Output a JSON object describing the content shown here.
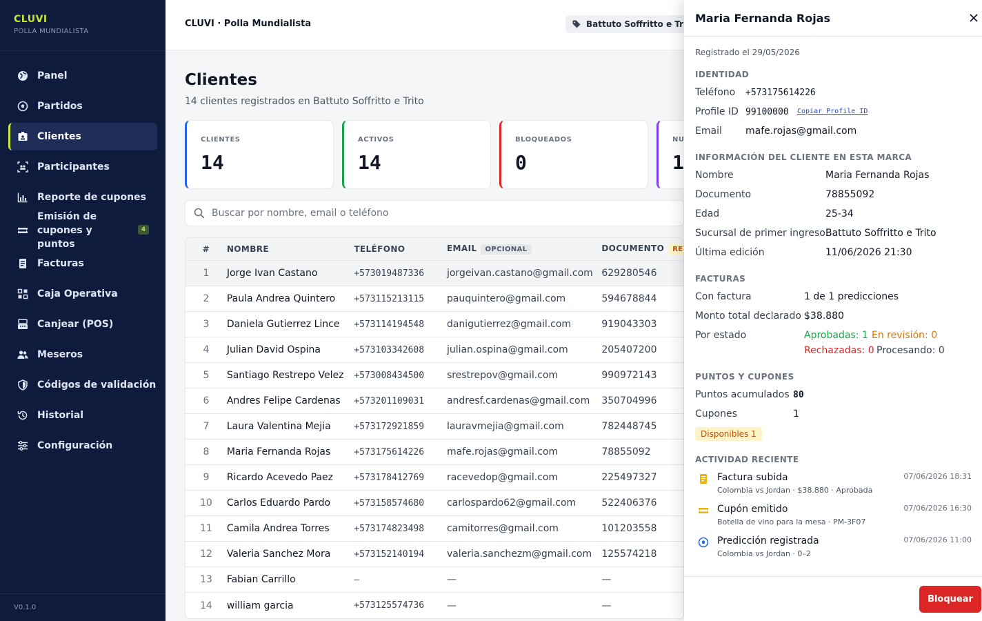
{
  "sidebar": {
    "brand": "CLUVI",
    "subtitle": "POLLA MUNDIALISTA",
    "items": [
      {
        "label": "Panel",
        "icon": "globe-icon"
      },
      {
        "label": "Partidos",
        "icon": "soccer-ball-icon"
      },
      {
        "label": "Clientes",
        "icon": "id-card-icon",
        "active": true
      },
      {
        "label": "Participantes",
        "icon": "users-scan-icon"
      },
      {
        "label": "Reporte de cupones",
        "icon": "bar-chart-icon"
      },
      {
        "label": "Emisión de cupones y puntos",
        "icon": "ticket-icon",
        "badge": "4"
      },
      {
        "label": "Facturas",
        "icon": "receipt-icon"
      },
      {
        "label": "Caja Operativa",
        "icon": "grid-icon"
      },
      {
        "label": "Canjear (POS)",
        "icon": "pos-icon"
      },
      {
        "label": "Meseros",
        "icon": "people-icon"
      },
      {
        "label": "Códigos de validación",
        "icon": "shield-icon"
      },
      {
        "label": "Historial",
        "icon": "history-icon"
      },
      {
        "label": "Configuración",
        "icon": "sliders-icon"
      }
    ],
    "version": "V0.1.0"
  },
  "header": {
    "title": "CLUVI · Polla Mundialista",
    "brand_chip": "Battuto Soffritto e Trito"
  },
  "main": {
    "title": "Clientes",
    "subtitle": "14 clientes registrados en Battuto Soffritto e Trito",
    "stats": [
      {
        "label": "CLIENTES",
        "value": "14",
        "color": "#2563eb"
      },
      {
        "label": "ACTIVOS",
        "value": "14",
        "color": "#16a34a"
      },
      {
        "label": "BLOQUEADOS",
        "value": "0",
        "color": "#dc2626"
      },
      {
        "label": "NU",
        "value": "1",
        "color": "#7c3aed"
      }
    ],
    "search_placeholder": "Buscar por nombre, email o teléfono",
    "table": {
      "headers": {
        "n": "#",
        "name": "NOMBRE",
        "tel": "TELÉFONO",
        "email": "EMAIL",
        "email_tag": "OPCIONAL",
        "doc": "DOCUMENTO",
        "doc_tag": "REQ"
      },
      "rows": [
        {
          "n": "1",
          "name": "Jorge Ivan Castano",
          "tel": "+573019487336",
          "email": "jorgeivan.castano@gmail.com",
          "doc": "629280546"
        },
        {
          "n": "2",
          "name": "Paula Andrea Quintero",
          "tel": "+573115213115",
          "email": "pauquintero@gmail.com",
          "doc": "594678844"
        },
        {
          "n": "3",
          "name": "Daniela Gutierrez Lince",
          "tel": "+573114194548",
          "email": "danigutierrez@gmail.com",
          "doc": "919043303"
        },
        {
          "n": "4",
          "name": "Julian David Ospina",
          "tel": "+573103342608",
          "email": "julian.ospina@gmail.com",
          "doc": "205407200"
        },
        {
          "n": "5",
          "name": "Santiago Restrepo Velez",
          "tel": "+573008434500",
          "email": "srestrepov@gmail.com",
          "doc": "990972143"
        },
        {
          "n": "6",
          "name": "Andres Felipe Cardenas",
          "tel": "+573201109031",
          "email": "andresf.cardenas@gmail.com",
          "doc": "350704996"
        },
        {
          "n": "7",
          "name": "Laura Valentina Mejia",
          "tel": "+573172921859",
          "email": "lauravmejia@gmail.com",
          "doc": "782448745"
        },
        {
          "n": "8",
          "name": "Maria Fernanda Rojas",
          "tel": "+573175614226",
          "email": "mafe.rojas@gmail.com",
          "doc": "78855092"
        },
        {
          "n": "9",
          "name": "Ricardo Acevedo Paez",
          "tel": "+573178412769",
          "email": "racevedop@gmail.com",
          "doc": "225497327"
        },
        {
          "n": "10",
          "name": "Carlos Eduardo Pardo",
          "tel": "+573158574680",
          "email": "carlospardo62@gmail.com",
          "doc": "522406376"
        },
        {
          "n": "11",
          "name": "Camila Andrea Torres",
          "tel": "+573174823498",
          "email": "camitorres@gmail.com",
          "doc": "101203558"
        },
        {
          "n": "12",
          "name": "Valeria Sanchez Mora",
          "tel": "+573152140194",
          "email": "valeria.sanchezm@gmail.com",
          "doc": "125574218"
        },
        {
          "n": "13",
          "name": "Fabian Carrillo",
          "tel": "–",
          "email": "—",
          "doc": "—"
        },
        {
          "n": "14",
          "name": "william garcia",
          "tel": "+573125574736",
          "email": "—",
          "doc": "—"
        }
      ]
    }
  },
  "drawer": {
    "name": "Maria Fernanda Rojas",
    "registered": "Registrado el 29/05/2026",
    "identity": {
      "title": "IDENTIDAD",
      "phone_label": "Teléfono",
      "phone": "+573175614226",
      "profile_label": "Profile ID",
      "profile": "99100000",
      "copy_label": "Copiar Profile ID",
      "email_label": "Email",
      "email": "mafe.rojas@gmail.com"
    },
    "brand_info": {
      "title": "INFORMACIÓN DEL CLIENTE EN ESTA MARCA",
      "name_label": "Nombre",
      "name": "Maria Fernanda Rojas",
      "doc_label": "Documento",
      "doc": "78855092",
      "age_label": "Edad",
      "age": "25-34",
      "branch_label": "Sucursal de primer ingreso",
      "branch": "Battuto Soffritto e Trito",
      "edit_label": "Última edición",
      "edit": "11/06/2026 21:30"
    },
    "invoices": {
      "title": "FACTURAS",
      "with_label": "Con factura",
      "with": "1 de 1 predicciones",
      "total_label": "Monto total declarado",
      "total": "$38.880",
      "status_label": "Por estado",
      "approved": "Aprobadas: 1",
      "review": "En revisión: 0",
      "rejected": "Rechazadas: 0",
      "processing": "Procesando: 0"
    },
    "points": {
      "title": "PUNTOS Y CUPONES",
      "points_label": "Puntos acumulados",
      "points": "80",
      "coupons_label": "Cupones",
      "coupons": "1",
      "available": "Disponibles 1"
    },
    "activity": {
      "title": "ACTIVIDAD RECIENTE",
      "items": [
        {
          "title": "Factura subida",
          "sub": "Colombia vs Jordan · $38.880 · Aprobada",
          "time": "07/06/2026 18:31",
          "icon": "receipt-icon"
        },
        {
          "title": "Cupón emitido",
          "sub": "Botella de vino para la mesa · PM-3F07",
          "time": "07/06/2026 16:30",
          "icon": "ticket-icon"
        },
        {
          "title": "Predicción registrada",
          "sub": "Colombia vs Jordan · 0–2",
          "time": "07/06/2026 11:00",
          "icon": "soccer-ball-icon"
        }
      ]
    },
    "block_label": "Bloquear"
  }
}
